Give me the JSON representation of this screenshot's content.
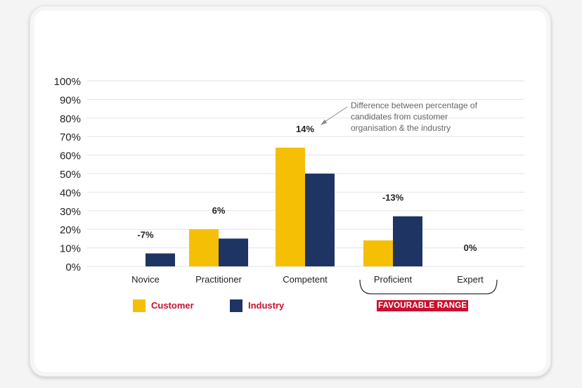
{
  "chart_data": {
    "type": "bar",
    "categories": [
      "Novice",
      "Practitioner",
      "Competent",
      "Proficient",
      "Expert"
    ],
    "series": [
      {
        "name": "Customer",
        "color": "#f5bf06",
        "values": [
          0,
          20,
          64,
          14,
          0
        ]
      },
      {
        "name": "Industry",
        "color": "#1e3563",
        "values": [
          7,
          15,
          50,
          27,
          0
        ]
      }
    ],
    "difference_labels": [
      "-7%",
      "6%",
      "14%",
      "-13%",
      "0%"
    ],
    "y_ticks": [
      "0%",
      "10%",
      "20%",
      "30%",
      "40%",
      "50%",
      "60%",
      "70%",
      "80%",
      "90%",
      "100%"
    ],
    "ylim": [
      0,
      100
    ],
    "grid": true,
    "annotation": {
      "lines": [
        "Difference between percentage of",
        "candidates from customer",
        "organisation & the industry"
      ],
      "points_to": "Competent"
    },
    "range_label": "FAVOURABLE RANGE",
    "range_categories": [
      "Proficient",
      "Expert"
    ],
    "legend_placement": "bottom-left",
    "colors": {
      "grid": "#e3e3e3",
      "text": "#222222",
      "legend_text": "#c8102e",
      "range_bg": "#c8102e"
    }
  }
}
